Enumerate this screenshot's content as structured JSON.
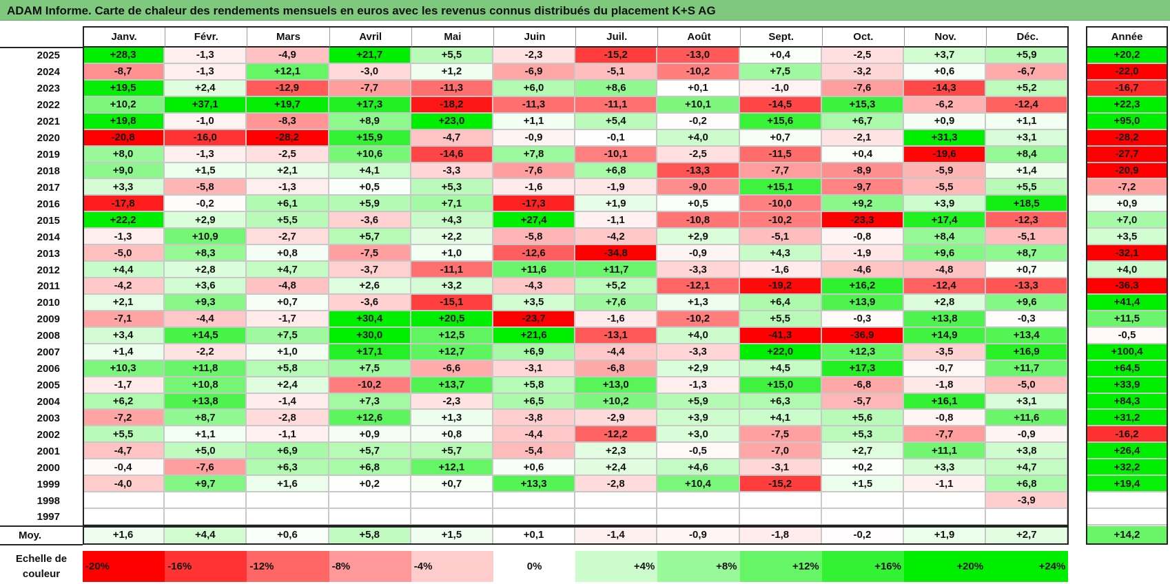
{
  "title": "ADAM Informe. Carte de chaleur des rendements mensuels en euros avec les revenus connus distribués du placement K+S AG",
  "chart_data": {
    "type": "heatmap",
    "months": [
      "Janv.",
      "Févr.",
      "Mars",
      "Avril",
      "Mai",
      "Juin",
      "Juil.",
      "Août",
      "Sept.",
      "Oct.",
      "Nov.",
      "Déc."
    ],
    "year_header": "Année",
    "average_label": "Moy.",
    "rows": [
      {
        "year": "2025",
        "values": [
          "+28,3",
          "-1,3",
          "-4,9",
          "+21,7",
          "+5,5",
          "-2,3",
          "-15,2",
          "-13,0",
          "+0,4",
          "-2,5",
          "+3,7",
          "+5,9"
        ],
        "annual": "+20,2"
      },
      {
        "year": "2024",
        "values": [
          "-8,7",
          "-1,3",
          "+12,1",
          "-3,0",
          "+1,2",
          "-6,9",
          "-5,1",
          "-10,2",
          "+7,5",
          "-3,2",
          "+0,6",
          "-6,7"
        ],
        "annual": "-22,0"
      },
      {
        "year": "2023",
        "values": [
          "+19,5",
          "+2,4",
          "-12,9",
          "-7,7",
          "-11,3",
          "+6,0",
          "+8,6",
          "+0,1",
          "-1,0",
          "-7,6",
          "-14,3",
          "+5,2"
        ],
        "annual": "-16,7"
      },
      {
        "year": "2022",
        "values": [
          "+10,2",
          "+37,1",
          "+19,7",
          "+17,3",
          "-18,2",
          "-11,3",
          "-11,1",
          "+10,1",
          "-14,5",
          "+15,3",
          "-6,2",
          "-12,4"
        ],
        "annual": "+22,3"
      },
      {
        "year": "2021",
        "values": [
          "+19,8",
          "-1,0",
          "-8,3",
          "+8,9",
          "+23,0",
          "+1,1",
          "+5,4",
          "-0,2",
          "+15,6",
          "+6,7",
          "+0,9",
          "+1,1"
        ],
        "annual": "+95,0"
      },
      {
        "year": "2020",
        "values": [
          "-20,8",
          "-16,0",
          "-28,2",
          "+15,9",
          "-4,7",
          "-0,9",
          "-0,1",
          "+4,0",
          "+0,7",
          "-2,1",
          "+31,3",
          "+3,1"
        ],
        "annual": "-28,2"
      },
      {
        "year": "2019",
        "values": [
          "+8,0",
          "-1,3",
          "-2,5",
          "+10,6",
          "-14,6",
          "+7,8",
          "-10,1",
          "-2,5",
          "-11,5",
          "+0,4",
          "-19,6",
          "+8,4"
        ],
        "annual": "-27,7"
      },
      {
        "year": "2018",
        "values": [
          "+9,0",
          "+1,5",
          "+2,1",
          "+4,1",
          "-3,3",
          "-7,6",
          "+6,8",
          "-13,3",
          "-7,7",
          "-8,9",
          "-5,9",
          "+1,4"
        ],
        "annual": "-20,9"
      },
      {
        "year": "2017",
        "values": [
          "+3,3",
          "-5,8",
          "-1,3",
          "+0,5",
          "+5,3",
          "-1,6",
          "-1,9",
          "-9,0",
          "+15,1",
          "-9,7",
          "-5,5",
          "+5,5"
        ],
        "annual": "-7,2"
      },
      {
        "year": "2016",
        "values": [
          "-17,8",
          "-0,2",
          "+6,1",
          "+5,9",
          "+7,1",
          "-17,3",
          "+1,9",
          "+0,5",
          "-10,0",
          "+9,2",
          "+3,9",
          "+18,5"
        ],
        "annual": "+0,9"
      },
      {
        "year": "2015",
        "values": [
          "+22,2",
          "+2,9",
          "+5,5",
          "-3,6",
          "+4,3",
          "+27,4",
          "-1,1",
          "-10,8",
          "-10,2",
          "-23,3",
          "+17,4",
          "-12,3"
        ],
        "annual": "+7,0"
      },
      {
        "year": "2014",
        "values": [
          "-1,3",
          "+10,9",
          "-2,7",
          "+5,7",
          "+2,2",
          "-5,8",
          "-4,2",
          "+2,9",
          "-5,1",
          "-0,8",
          "+8,4",
          "-5,1"
        ],
        "annual": "+3,5"
      },
      {
        "year": "2013",
        "values": [
          "-5,0",
          "+8,3",
          "+0,8",
          "-7,5",
          "+1,0",
          "-12,6",
          "-34,8",
          "-0,9",
          "+4,3",
          "-1,9",
          "+9,6",
          "+8,7"
        ],
        "annual": "-32,1"
      },
      {
        "year": "2012",
        "values": [
          "+4,4",
          "+2,8",
          "+4,7",
          "-3,7",
          "-11,1",
          "+11,6",
          "+11,7",
          "-3,3",
          "-1,6",
          "-4,6",
          "-4,8",
          "+0,7"
        ],
        "annual": "+4,0"
      },
      {
        "year": "2011",
        "values": [
          "-4,2",
          "+3,6",
          "-4,8",
          "+2,6",
          "+3,2",
          "-4,3",
          "+5,2",
          "-12,1",
          "-19,2",
          "+16,2",
          "-12,4",
          "-13,3"
        ],
        "annual": "-36,3"
      },
      {
        "year": "2010",
        "values": [
          "+2,1",
          "+9,3",
          "+0,7",
          "-3,6",
          "-15,1",
          "+3,5",
          "+7,6",
          "+1,3",
          "+6,4",
          "+13,9",
          "+2,8",
          "+9,6"
        ],
        "annual": "+41,4"
      },
      {
        "year": "2009",
        "values": [
          "-7,1",
          "-4,4",
          "-1,7",
          "+30,4",
          "+20,5",
          "-23,7",
          "-1,6",
          "-10,2",
          "+5,5",
          "-0,3",
          "+13,8",
          "-0,3"
        ],
        "annual": "+11,5"
      },
      {
        "year": "2008",
        "values": [
          "+3,4",
          "+14,5",
          "+7,5",
          "+30,0",
          "+12,5",
          "+21,6",
          "-13,1",
          "+4,0",
          "-41,3",
          "-36,9",
          "+14,9",
          "+13,4"
        ],
        "annual": "-0,5"
      },
      {
        "year": "2007",
        "values": [
          "+1,4",
          "-2,2",
          "+1,0",
          "+17,1",
          "+12,7",
          "+6,9",
          "-4,4",
          "-3,3",
          "+22,0",
          "+12,3",
          "-3,5",
          "+16,9"
        ],
        "annual": "+100,4"
      },
      {
        "year": "2006",
        "values": [
          "+10,3",
          "+11,8",
          "+5,8",
          "+7,5",
          "-6,6",
          "-3,1",
          "-6,8",
          "+2,9",
          "+4,5",
          "+17,3",
          "-0,7",
          "+11,7"
        ],
        "annual": "+64,5"
      },
      {
        "year": "2005",
        "values": [
          "-1,7",
          "+10,8",
          "+2,4",
          "-10,2",
          "+13,7",
          "+5,8",
          "+13,0",
          "-1,3",
          "+15,0",
          "-6,8",
          "-1,8",
          "-5,0"
        ],
        "annual": "+33,9"
      },
      {
        "year": "2004",
        "values": [
          "+6,2",
          "+13,8",
          "-1,4",
          "+7,3",
          "-2,3",
          "+6,5",
          "+10,2",
          "+5,9",
          "+6,3",
          "-5,7",
          "+16,1",
          "+3,1"
        ],
        "annual": "+84,3"
      },
      {
        "year": "2003",
        "values": [
          "-7,2",
          "+8,7",
          "-2,8",
          "+12,6",
          "+1,3",
          "-3,8",
          "-2,9",
          "+3,9",
          "+4,1",
          "+5,6",
          "-0,8",
          "+11,6"
        ],
        "annual": "+31,2"
      },
      {
        "year": "2002",
        "values": [
          "+5,5",
          "+1,1",
          "-1,1",
          "+0,9",
          "+0,8",
          "-4,4",
          "-12,2",
          "+3,0",
          "-7,5",
          "+5,3",
          "-7,7",
          "-0,9"
        ],
        "annual": "-16,2"
      },
      {
        "year": "2001",
        "values": [
          "-4,7",
          "+5,0",
          "+6,9",
          "+5,7",
          "+5,7",
          "-5,4",
          "+2,3",
          "-0,5",
          "-7,0",
          "+2,7",
          "+11,1",
          "+3,8"
        ],
        "annual": "+26,4"
      },
      {
        "year": "2000",
        "values": [
          "-0,4",
          "-7,6",
          "+6,3",
          "+6,8",
          "+12,1",
          "+0,6",
          "+2,4",
          "+4,6",
          "-3,1",
          "+0,2",
          "+3,3",
          "+4,7"
        ],
        "annual": "+32,2"
      },
      {
        "year": "1999",
        "values": [
          "-4,0",
          "+9,7",
          "+1,6",
          "+0,2",
          "+0,7",
          "+13,3",
          "-2,8",
          "+10,4",
          "-15,2",
          "+1,5",
          "-1,1",
          "+6,8"
        ],
        "annual": "+19,4"
      },
      {
        "year": "1998",
        "values": [
          "",
          "",
          "",
          "",
          "",
          "",
          "",
          "",
          "",
          "",
          "",
          "-3,9"
        ],
        "annual": ""
      },
      {
        "year": "1997",
        "values": [
          "",
          "",
          "",
          "",
          "",
          "",
          "",
          "",
          "",
          "",
          "",
          ""
        ],
        "annual": ""
      }
    ],
    "averages": [
      "+1,6",
      "+4,4",
      "+0,6",
      "+5,8",
      "+1,5",
      "+0,1",
      "-1,4",
      "-0,9",
      "-1,8",
      "-0,2",
      "+1,9",
      "+2,7"
    ],
    "average_annual": "+14,2",
    "color_scale": {
      "label_line1": "Echelle de",
      "label_line2": "couleur",
      "stops": [
        "-20%",
        "-16%",
        "-12%",
        "-8%",
        "-4%",
        "0%",
        "+4%",
        "+8%",
        "+12%",
        "+16%",
        "+20%",
        "+24%"
      ],
      "negative_color": "#ff0000",
      "neutral_color": "#ffffff",
      "positive_color": "#00ee00"
    },
    "header_bar_color": "#7fc97f"
  }
}
